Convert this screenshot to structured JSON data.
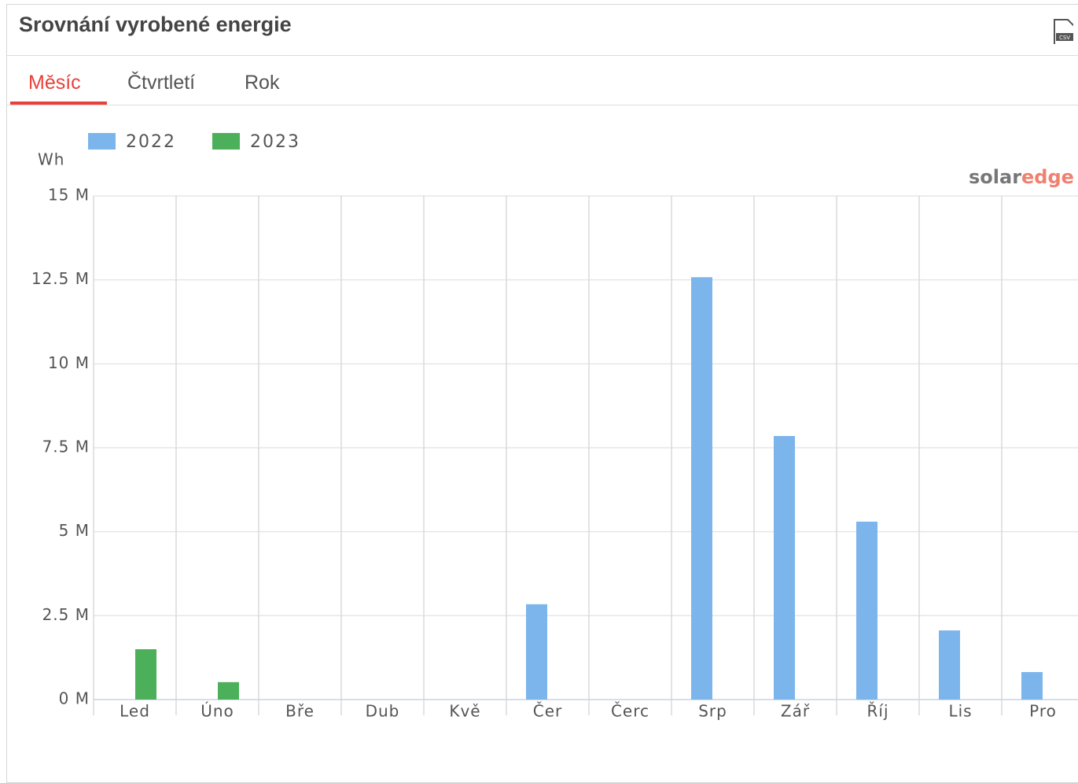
{
  "header": {
    "title": "Srovnání vyrobené energie",
    "export_icon": "CSV"
  },
  "tabs": [
    "Měsíc",
    "Čtvrtletí",
    "Rok"
  ],
  "logo": {
    "part1": "solar",
    "part2": "edge"
  },
  "chart_data": {
    "type": "bar",
    "y_label": "Wh",
    "categories": [
      "Led",
      "Úno",
      "Bře",
      "Dub",
      "Kvě",
      "Čer",
      "Čerc",
      "Srp",
      "Zář",
      "Říj",
      "Lis",
      "Pro"
    ],
    "series": [
      {
        "name": "2022",
        "color": "#7cb5ec",
        "values": [
          null,
          null,
          null,
          null,
          null,
          2840000,
          null,
          12580000,
          7850000,
          5300000,
          2060000,
          820000
        ]
      },
      {
        "name": "2023",
        "color": "#4cb05a",
        "values": [
          1500000,
          520000,
          null,
          null,
          null,
          null,
          null,
          null,
          null,
          null,
          null,
          null
        ]
      }
    ],
    "ylim": [
      0,
      15000000
    ],
    "yticks": [
      {
        "value": 0,
        "label": "0 M"
      },
      {
        "value": 2500000,
        "label": "2.5 M"
      },
      {
        "value": 5000000,
        "label": "5 M"
      },
      {
        "value": 7500000,
        "label": "7.5 M"
      },
      {
        "value": 10000000,
        "label": "10 M"
      },
      {
        "value": 12500000,
        "label": "12.5 M"
      },
      {
        "value": 15000000,
        "label": "15 M"
      }
    ],
    "grid": true,
    "legend": "top-left"
  }
}
